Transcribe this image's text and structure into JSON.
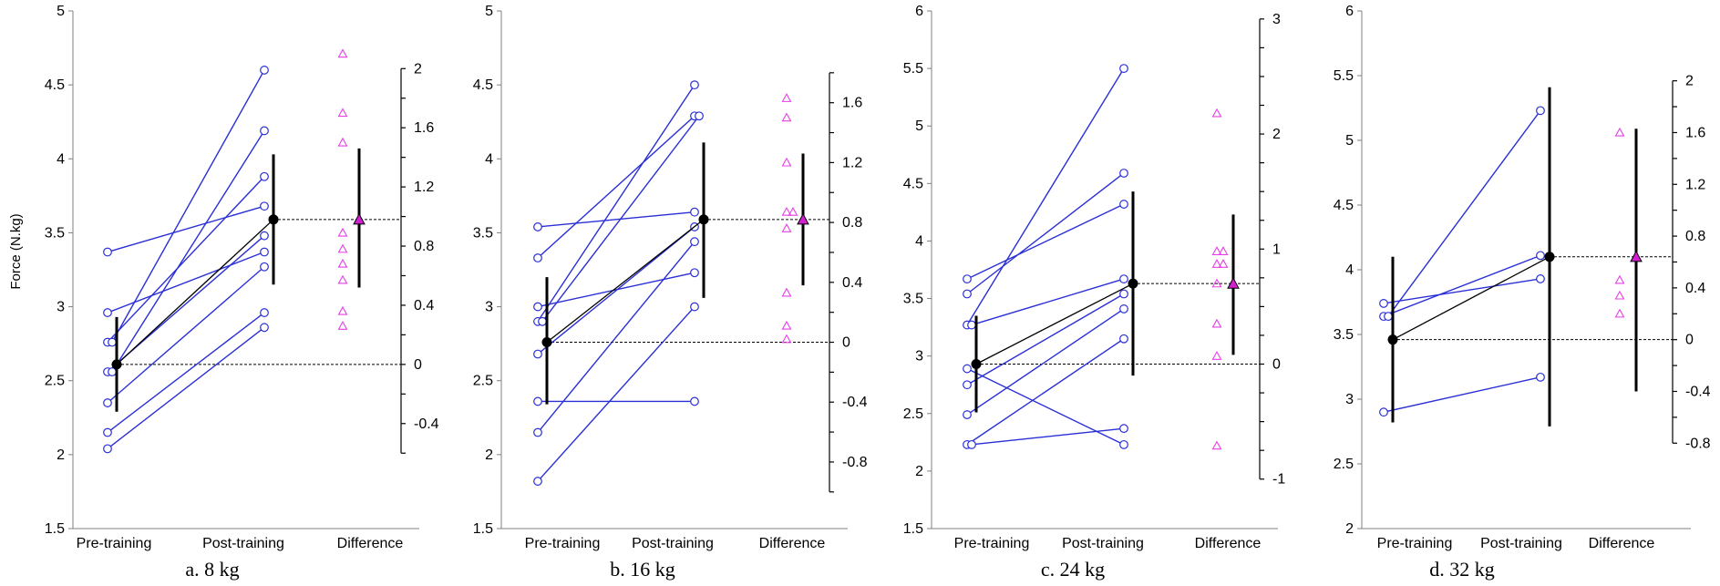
{
  "ylabel": "Force (N.kg)",
  "chart_data": [
    {
      "type": "scatter",
      "caption": "a. 8 kg",
      "categories": [
        "Pre-training",
        "Post-training",
        "Difference"
      ],
      "ylim": [
        1.5,
        5
      ],
      "yticks": [
        1.5,
        2,
        2.5,
        3,
        3.5,
        4,
        4.5,
        5
      ],
      "diff_axis": {
        "ylim": [
          -0.6,
          2
        ],
        "labeled_ticks": [
          -0.4,
          0,
          0.4,
          0.8,
          1.2,
          1.6,
          2
        ],
        "minor_step": 0.2
      },
      "pairs": [
        [
          3.37,
          3.68
        ],
        [
          2.96,
          3.37
        ],
        [
          2.76,
          3.88
        ],
        [
          2.76,
          4.6
        ],
        [
          2.56,
          3.48
        ],
        [
          2.56,
          4.19
        ],
        [
          2.35,
          3.27
        ],
        [
          2.15,
          2.96
        ],
        [
          2.04,
          2.86
        ]
      ],
      "pre_mean": {
        "value": 2.61,
        "ci": [
          2.29,
          2.93
        ]
      },
      "post_mean": {
        "value": 3.59,
        "ci": [
          3.15,
          4.03
        ]
      },
      "differences": [
        2.1,
        1.7,
        1.5,
        0.89,
        0.78,
        0.68,
        0.57,
        0.36,
        0.26
      ],
      "diff_mean": {
        "value": 0.98,
        "ci": [
          0.52,
          1.46
        ]
      }
    },
    {
      "type": "scatter",
      "caption": "b. 16 kg",
      "categories": [
        "Pre-training",
        "Post-training",
        "Difference"
      ],
      "ylim": [
        1.5,
        5
      ],
      "yticks": [
        1.5,
        2,
        2.5,
        3,
        3.5,
        4,
        4.5,
        5
      ],
      "diff_axis": {
        "ylim": [
          -1,
          1.8
        ],
        "labeled_ticks": [
          -0.8,
          -0.4,
          0,
          0.4,
          0.8,
          1.2,
          1.6
        ],
        "minor_step": 0.2
      },
      "pairs": [
        [
          3.54,
          3.64
        ],
        [
          3.33,
          4.29
        ],
        [
          3.0,
          3.23
        ],
        [
          2.9,
          4.5
        ],
        [
          2.9,
          4.29
        ],
        [
          2.68,
          3.54
        ],
        [
          2.36,
          2.36
        ],
        [
          2.15,
          3.44
        ],
        [
          1.82,
          3.0
        ]
      ],
      "pre_mean": {
        "value": 2.76,
        "ci": [
          2.34,
          3.2
        ]
      },
      "post_mean": {
        "value": 3.59,
        "ci": [
          3.06,
          4.11
        ]
      },
      "differences": [
        1.63,
        1.5,
        1.2,
        0.87,
        0.87,
        0.76,
        0.33,
        0.11,
        0.02
      ],
      "diff_mean": {
        "value": 0.82,
        "ci": [
          0.38,
          1.26
        ]
      }
    },
    {
      "type": "scatter",
      "caption": "c. 24 kg",
      "categories": [
        "Pre-training",
        "Post-training",
        "Difference"
      ],
      "ylim": [
        1.5,
        6
      ],
      "yticks": [
        1.5,
        2,
        2.5,
        3,
        3.5,
        4,
        4.5,
        5,
        5.5,
        6
      ],
      "diff_axis": {
        "ylim": [
          -1,
          3
        ],
        "labeled_ticks": [
          -1,
          0,
          1,
          2,
          3
        ],
        "minor_step": 0.25
      },
      "pairs": [
        [
          3.67,
          4.32
        ],
        [
          3.54,
          4.59
        ],
        [
          3.27,
          5.5
        ],
        [
          3.27,
          3.67
        ],
        [
          2.89,
          2.23
        ],
        [
          2.75,
          3.54
        ],
        [
          2.49,
          3.41
        ],
        [
          2.23,
          3.15
        ],
        [
          2.23,
          2.37
        ]
      ],
      "pre_mean": {
        "value": 2.93,
        "ci": [
          2.51,
          3.35
        ]
      },
      "post_mean": {
        "value": 3.63,
        "ci": [
          2.83,
          4.43
        ]
      },
      "differences": [
        2.18,
        0.98,
        0.98,
        0.87,
        0.87,
        0.7,
        0.35,
        0.07,
        -0.71
      ],
      "diff_mean": {
        "value": 0.7,
        "ci": [
          0.08,
          1.3
        ]
      }
    },
    {
      "type": "scatter",
      "caption": "d. 32 kg",
      "categories": [
        "Pre-training",
        "Post-training",
        "Difference"
      ],
      "ylim": [
        2,
        6
      ],
      "yticks": [
        2,
        2.5,
        3,
        3.5,
        4,
        4.5,
        5,
        5.5,
        6
      ],
      "diff_axis": {
        "ylim": [
          -0.8,
          2
        ],
        "labeled_ticks": [
          -0.8,
          -0.4,
          0,
          0.4,
          0.8,
          1.2,
          1.6,
          2
        ],
        "minor_step": 0.2
      },
      "pairs": [
        [
          3.74,
          3.93
        ],
        [
          3.64,
          4.11
        ],
        [
          3.64,
          5.23
        ],
        [
          2.9,
          3.17
        ]
      ],
      "pre_mean": {
        "value": 3.46,
        "ci": [
          2.82,
          4.1
        ]
      },
      "post_mean": {
        "value": 4.1,
        "ci": [
          2.79,
          5.41
        ]
      },
      "differences": [
        1.6,
        0.46,
        0.34,
        0.2
      ],
      "diff_mean": {
        "value": 0.64,
        "ci": [
          -0.4,
          1.63
        ]
      }
    }
  ]
}
